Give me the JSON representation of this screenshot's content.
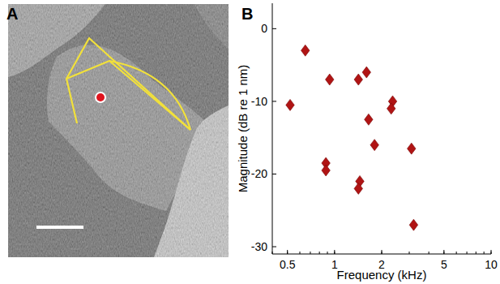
{
  "panel_labels": {
    "a": "A",
    "b": "B"
  },
  "chart_data": {
    "type": "scatter",
    "x_label": "Frequency (kHz)",
    "y_label": "Magnitude (dB re 1 nm)",
    "log": "x",
    "xlim": [
      0.4,
      10
    ],
    "xticks": [
      0.5,
      1,
      2,
      5,
      10
    ],
    "ylim": [
      -31,
      3.5
    ],
    "yticks": [
      -30,
      -20,
      -10,
      0
    ],
    "grid": false,
    "color": "#b01414",
    "marker": "diamond",
    "x": [
      0.52,
      0.65,
      0.93,
      0.88,
      0.88,
      1.42,
      1.6,
      1.45,
      1.42,
      1.65,
      1.8,
      2.35,
      2.3,
      3.1,
      3.2
    ],
    "values": [
      -10.5,
      -3,
      -7,
      -18.5,
      -19.5,
      -7,
      -6,
      -21,
      -22,
      -12.5,
      -16,
      -10,
      -11,
      -16.5,
      -27
    ]
  }
}
